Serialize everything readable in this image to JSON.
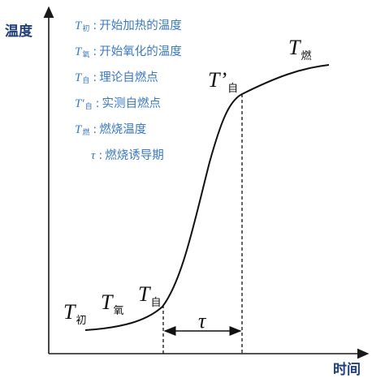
{
  "axes": {
    "y_label": "温度",
    "x_label": "时间"
  },
  "legend": [
    {
      "sym": "T",
      "sub": "初",
      "sep": ":",
      "text": "开始加热的温度"
    },
    {
      "sym": "T",
      "sub": "氧",
      "sep": ":",
      "text": "开始氧化的温度"
    },
    {
      "sym": "T",
      "sub": "自",
      "sep": ":",
      "text": "理论自燃点"
    },
    {
      "sym": "T′",
      "sub": "自",
      "sep": ":",
      "text": "实测自燃点"
    },
    {
      "sym": "T",
      "sub": "燃",
      "sep": ":",
      "text": "燃烧温度"
    },
    {
      "sym": "τ",
      "sub": "",
      "sep": ":",
      "text": "燃烧诱导期"
    }
  ],
  "curve_labels": {
    "t_initial": {
      "sym": "T",
      "sub": "初"
    },
    "t_oxidation": {
      "sym": "T",
      "sub": "氧"
    },
    "t_self": {
      "sym": "T",
      "sub": "自"
    },
    "t_self_measured": {
      "sym": "T’",
      "sub": "自"
    },
    "t_burn": {
      "sym": "T",
      "sub": "燃"
    },
    "tau": {
      "sym": "τ"
    }
  },
  "colors": {
    "axis": "#1a1a1a",
    "curve": "#111111",
    "legend_text": "#3a78c2",
    "axis_label": "#1f3f7a"
  }
}
